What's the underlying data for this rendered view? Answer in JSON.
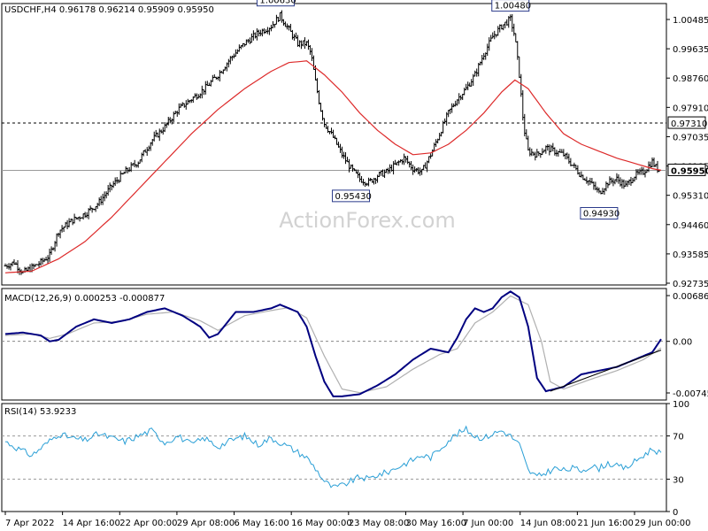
{
  "chart_data": [
    {
      "type": "bar",
      "subtype": "ohlc",
      "symbol": "USDCHF,H4",
      "header_values": "0.96178 0.96214 0.95909 0.95950",
      "watermark": "ActionForex.com",
      "ylim": [
        0.9265,
        1.0075
      ],
      "y_ticks": [
        "1.00485",
        "0.99635",
        "0.98760",
        "0.97910",
        "0.97035",
        "0.96185",
        "0.95310",
        "0.94460",
        "0.93585",
        "0.92735"
      ],
      "x_ticks": [
        "7 Apr 2022",
        "14 Apr 16:00",
        "22 Apr 00:00",
        "29 Apr 08:00",
        "6 May 16:00",
        "16 May 00:00",
        "23 May 08:00",
        "30 May 16:00",
        "7 Jun 00:00",
        "14 Jun 08:00",
        "21 Jun 16:00",
        "29 Jun 00:00"
      ],
      "horizontal_lines": [
        {
          "value": 0.9731,
          "style": "dashed",
          "label": "0.97310"
        },
        {
          "value": 0.9595,
          "style": "solid",
          "label": "0.95950"
        }
      ],
      "annotations": [
        {
          "text": "1.00630",
          "value": 1.0063
        },
        {
          "text": "0.95430",
          "value": 0.9543
        },
        {
          "text": "1.00480",
          "value": 1.0048
        },
        {
          "text": "0.94930",
          "value": 0.9493
        }
      ],
      "price_anchors": [
        [
          0,
          0.932
        ],
        [
          2,
          0.933
        ],
        [
          4,
          0.93
        ],
        [
          6,
          0.9315
        ],
        [
          8,
          0.933
        ],
        [
          10,
          0.935
        ],
        [
          12,
          0.942
        ],
        [
          15,
          0.945
        ],
        [
          18,
          0.947
        ],
        [
          21,
          0.95
        ],
        [
          24,
          0.955
        ],
        [
          27,
          0.959
        ],
        [
          30,
          0.962
        ],
        [
          33,
          0.968
        ],
        [
          36,
          0.972
        ],
        [
          39,
          0.977
        ],
        [
          42,
          0.98
        ],
        [
          45,
          0.983
        ],
        [
          48,
          0.987
        ],
        [
          51,
          0.992
        ],
        [
          54,
          0.996
        ],
        [
          57,
          0.999
        ],
        [
          60,
          1.001
        ],
        [
          62,
          1.004
        ],
        [
          64,
          1.0
        ],
        [
          66,
          0.996
        ],
        [
          68,
          0.996
        ],
        [
          69,
          0.993
        ],
        [
          70,
          0.985
        ],
        [
          71,
          0.978
        ],
        [
          72,
          0.973
        ],
        [
          74,
          0.969
        ],
        [
          76,
          0.964
        ],
        [
          78,
          0.96
        ],
        [
          80,
          0.957
        ],
        [
          82,
          0.956
        ],
        [
          84,
          0.958
        ],
        [
          86,
          0.959
        ],
        [
          88,
          0.961
        ],
        [
          90,
          0.963
        ],
        [
          92,
          0.96
        ],
        [
          94,
          0.959
        ],
        [
          96,
          0.964
        ],
        [
          98,
          0.97
        ],
        [
          100,
          0.976
        ],
        [
          102,
          0.98
        ],
        [
          104,
          0.983
        ],
        [
          106,
          0.987
        ],
        [
          108,
          0.993
        ],
        [
          110,
          0.998
        ],
        [
          112,
          1.001
        ],
        [
          114,
          1.003
        ],
        [
          115,
          0.998
        ],
        [
          116,
          0.987
        ],
        [
          117,
          0.972
        ],
        [
          118,
          0.965
        ],
        [
          120,
          0.964
        ],
        [
          122,
          0.966
        ],
        [
          124,
          0.965
        ],
        [
          126,
          0.964
        ],
        [
          128,
          0.961
        ],
        [
          130,
          0.958
        ],
        [
          132,
          0.956
        ],
        [
          134,
          0.953
        ],
        [
          136,
          0.956
        ],
        [
          138,
          0.957
        ],
        [
          140,
          0.955
        ],
        [
          142,
          0.958
        ],
        [
          144,
          0.959
        ],
        [
          146,
          0.962
        ],
        [
          147,
          0.96
        ],
        [
          148,
          0.9595
        ]
      ],
      "ma_anchors": [
        [
          0,
          0.93
        ],
        [
          6,
          0.9305
        ],
        [
          12,
          0.934
        ],
        [
          18,
          0.939
        ],
        [
          24,
          0.946
        ],
        [
          30,
          0.954
        ],
        [
          36,
          0.962
        ],
        [
          42,
          0.97
        ],
        [
          48,
          0.977
        ],
        [
          54,
          0.983
        ],
        [
          60,
          0.988
        ],
        [
          64,
          0.9905
        ],
        [
          68,
          0.991
        ],
        [
          72,
          0.987
        ],
        [
          76,
          0.982
        ],
        [
          80,
          0.976
        ],
        [
          84,
          0.971
        ],
        [
          88,
          0.967
        ],
        [
          92,
          0.964
        ],
        [
          96,
          0.9645
        ],
        [
          100,
          0.967
        ],
        [
          104,
          0.971
        ],
        [
          108,
          0.976
        ],
        [
          112,
          0.982
        ],
        [
          115,
          0.9855
        ],
        [
          118,
          0.983
        ],
        [
          122,
          0.976
        ],
        [
          126,
          0.97
        ],
        [
          130,
          0.967
        ],
        [
          134,
          0.965
        ],
        [
          138,
          0.963
        ],
        [
          142,
          0.9615
        ],
        [
          146,
          0.96
        ],
        [
          148,
          0.9595
        ]
      ],
      "colors": {
        "price": "#000000",
        "moving_average": "#dd2a2a",
        "frame": "#000000"
      }
    },
    {
      "type": "line",
      "indicator": "MACD(12,26,9) 0.000253 -0.000877",
      "ylim": [
        -0.008,
        0.0072
      ],
      "y_ticks": [
        "0.006861",
        "0.00",
        "-0.007454"
      ],
      "series": [
        {
          "name": "MACD",
          "color": "#000080",
          "values": [
            [
              0,
              0.001
            ],
            [
              4,
              0.0012
            ],
            [
              8,
              0.0008
            ],
            [
              10,
              0.0
            ],
            [
              12,
              0.0002
            ],
            [
              16,
              0.002
            ],
            [
              20,
              0.003
            ],
            [
              24,
              0.0025
            ],
            [
              28,
              0.003
            ],
            [
              32,
              0.004
            ],
            [
              36,
              0.0045
            ],
            [
              40,
              0.0035
            ],
            [
              44,
              0.002
            ],
            [
              46,
              0.0005
            ],
            [
              48,
              0.001
            ],
            [
              52,
              0.004
            ],
            [
              56,
              0.004
            ],
            [
              60,
              0.0045
            ],
            [
              62,
              0.005
            ],
            [
              64,
              0.0045
            ],
            [
              66,
              0.004
            ],
            [
              68,
              0.002
            ],
            [
              70,
              -0.002
            ],
            [
              72,
              -0.0055
            ],
            [
              74,
              -0.0075
            ],
            [
              76,
              -0.0075
            ],
            [
              80,
              -0.0072
            ],
            [
              84,
              -0.006
            ],
            [
              88,
              -0.0045
            ],
            [
              92,
              -0.0025
            ],
            [
              96,
              -0.001
            ],
            [
              100,
              -0.0015
            ],
            [
              102,
              0.0005
            ],
            [
              104,
              0.003
            ],
            [
              106,
              0.0045
            ],
            [
              108,
              0.004
            ],
            [
              110,
              0.0045
            ],
            [
              112,
              0.006
            ],
            [
              114,
              0.0068
            ],
            [
              116,
              0.006
            ],
            [
              118,
              0.002
            ],
            [
              120,
              -0.005
            ],
            [
              122,
              -0.0068
            ],
            [
              126,
              -0.0062
            ],
            [
              130,
              -0.0045
            ],
            [
              134,
              -0.004
            ],
            [
              138,
              -0.0035
            ],
            [
              142,
              -0.0025
            ],
            [
              146,
              -0.0015
            ],
            [
              148,
              0.0003
            ]
          ]
        },
        {
          "name": "Signal",
          "color": "#b0b0b0",
          "values": [
            [
              0,
              0.0008
            ],
            [
              6,
              0.001
            ],
            [
              10,
              0.0004
            ],
            [
              14,
              0.001
            ],
            [
              20,
              0.0025
            ],
            [
              26,
              0.0027
            ],
            [
              32,
              0.0037
            ],
            [
              38,
              0.004
            ],
            [
              44,
              0.0028
            ],
            [
              48,
              0.0015
            ],
            [
              54,
              0.0035
            ],
            [
              60,
              0.0042
            ],
            [
              64,
              0.0046
            ],
            [
              68,
              0.0032
            ],
            [
              72,
              -0.002
            ],
            [
              76,
              -0.0065
            ],
            [
              80,
              -0.007
            ],
            [
              86,
              -0.0062
            ],
            [
              92,
              -0.0038
            ],
            [
              98,
              -0.0018
            ],
            [
              102,
              -0.001
            ],
            [
              106,
              0.0025
            ],
            [
              110,
              0.004
            ],
            [
              114,
              0.0062
            ],
            [
              118,
              0.005
            ],
            [
              121,
              0.0
            ],
            [
              123,
              -0.0055
            ],
            [
              126,
              -0.0065
            ],
            [
              132,
              -0.0052
            ],
            [
              138,
              -0.004
            ],
            [
              144,
              -0.0025
            ],
            [
              148,
              -0.0009
            ]
          ]
        }
      ],
      "trendline": {
        "from": [
          123,
          -0.0068
        ],
        "to": [
          148,
          -0.0012
        ]
      }
    },
    {
      "type": "line",
      "indicator": "RSI(14) 53.9233",
      "ylim": [
        0,
        100
      ],
      "y_ticks": [
        "100",
        "70",
        "30",
        "0"
      ],
      "levels": [
        70,
        30
      ],
      "series": [
        {
          "name": "RSI",
          "color": "#2a9fd6",
          "values": [
            [
              0,
              65
            ],
            [
              3,
              58
            ],
            [
              6,
              52
            ],
            [
              9,
              62
            ],
            [
              12,
              72
            ],
            [
              15,
              68
            ],
            [
              18,
              66
            ],
            [
              21,
              72
            ],
            [
              24,
              68
            ],
            [
              27,
              65
            ],
            [
              30,
              70
            ],
            [
              33,
              75
            ],
            [
              36,
              64
            ],
            [
              39,
              70
            ],
            [
              42,
              62
            ],
            [
              45,
              68
            ],
            [
              48,
              60
            ],
            [
              51,
              66
            ],
            [
              54,
              70
            ],
            [
              57,
              62
            ],
            [
              60,
              68
            ],
            [
              63,
              62
            ],
            [
              66,
              55
            ],
            [
              68,
              50
            ],
            [
              70,
              40
            ],
            [
              72,
              28
            ],
            [
              74,
              22
            ],
            [
              76,
              24
            ],
            [
              78,
              28
            ],
            [
              80,
              32
            ],
            [
              82,
              30
            ],
            [
              84,
              34
            ],
            [
              86,
              36
            ],
            [
              88,
              40
            ],
            [
              90,
              44
            ],
            [
              92,
              48
            ],
            [
              94,
              52
            ],
            [
              96,
              50
            ],
            [
              98,
              58
            ],
            [
              100,
              66
            ],
            [
              102,
              72
            ],
            [
              104,
              76
            ],
            [
              106,
              70
            ],
            [
              108,
              68
            ],
            [
              110,
              72
            ],
            [
              112,
              75
            ],
            [
              114,
              70
            ],
            [
              116,
              62
            ],
            [
              118,
              38
            ],
            [
              120,
              32
            ],
            [
              122,
              36
            ],
            [
              124,
              40
            ],
            [
              126,
              38
            ],
            [
              128,
              40
            ],
            [
              130,
              38
            ],
            [
              132,
              42
            ],
            [
              134,
              40
            ],
            [
              136,
              45
            ],
            [
              138,
              42
            ],
            [
              140,
              40
            ],
            [
              142,
              46
            ],
            [
              144,
              52
            ],
            [
              146,
              58
            ],
            [
              148,
              54
            ]
          ]
        }
      ]
    }
  ]
}
